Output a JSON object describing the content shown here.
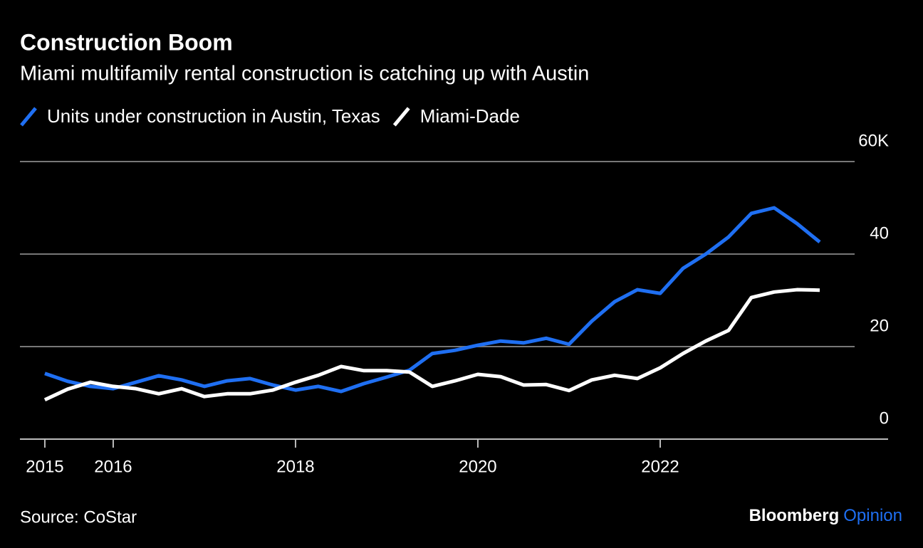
{
  "chart_data": {
    "type": "line",
    "title": "Construction Boom",
    "subtitle": "Miami multifamily rental construction is catching up with Austin",
    "source": "Source: CoStar",
    "branding": [
      "Bloomberg",
      "Opinion"
    ],
    "x": [
      2015.25,
      2015.5,
      2015.75,
      2016,
      2016.25,
      2016.5,
      2016.75,
      2017,
      2017.25,
      2017.5,
      2017.75,
      2018,
      2018.25,
      2018.5,
      2018.75,
      2019,
      2019.25,
      2019.5,
      2019.75,
      2020,
      2020.25,
      2020.5,
      2020.75,
      2021,
      2021.25,
      2021.5,
      2021.75,
      2022,
      2022.25,
      2022.5,
      2022.75,
      2023,
      2023.25,
      2023.5,
      2023.75
    ],
    "series": [
      {
        "name": "Units under construction in Austin, Texas",
        "color": "#1f6ff2",
        "values": [
          14.2,
          12.5,
          11.4,
          10.9,
          12.3,
          13.7,
          12.8,
          11.4,
          12.6,
          13.1,
          11.7,
          10.6,
          11.4,
          10.3,
          12.0,
          13.4,
          14.9,
          18.5,
          19.2,
          20.3,
          21.2,
          20.8,
          21.8,
          20.5,
          25.5,
          29.7,
          32.3,
          31.5,
          36.9,
          40.0,
          43.7,
          48.8,
          50.0,
          46.6,
          42.6
        ]
      },
      {
        "name": "Miami-Dade",
        "color": "#ffffff",
        "values": [
          8.5,
          10.8,
          12.3,
          11.4,
          10.9,
          9.8,
          10.9,
          9.2,
          9.8,
          9.8,
          10.6,
          12.3,
          13.8,
          15.7,
          14.8,
          14.8,
          14.5,
          11.4,
          12.6,
          14.0,
          13.5,
          11.7,
          11.8,
          10.5,
          12.8,
          13.8,
          13.1,
          15.4,
          18.5,
          21.2,
          23.5,
          30.6,
          31.8,
          32.3,
          32.2
        ]
      }
    ],
    "xlim": [
      2014.977,
      2024.5
    ],
    "xticks": [
      {
        "value": 2015.25,
        "label": "2015"
      },
      2016,
      2018,
      2020,
      2022
    ],
    "ylim": [
      0,
      60
    ],
    "yticks": [
      0,
      20,
      40,
      {
        "value": 60,
        "label": "60K"
      }
    ],
    "grid": true,
    "legend": "top-left"
  }
}
